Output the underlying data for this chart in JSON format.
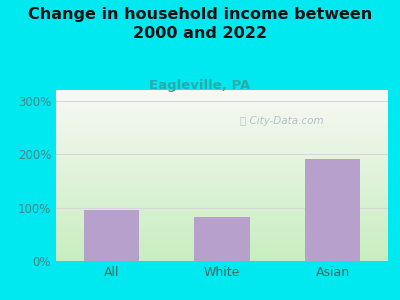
{
  "categories": [
    "All",
    "White",
    "Asian"
  ],
  "values": [
    95,
    82,
    191
  ],
  "bar_color": "#b8a0cc",
  "title": "Change in household income between\n2000 and 2022",
  "subtitle": "Eagleville, PA",
  "subtitle_color": "#2aaaaa",
  "title_fontsize": 11.5,
  "subtitle_fontsize": 9.5,
  "ylim": [
    0,
    320
  ],
  "yticks": [
    0,
    100,
    200,
    300
  ],
  "ytick_labels": [
    "0%",
    "100%",
    "200%",
    "300%"
  ],
  "background_color": "#00e8f0",
  "grad_bottom": "#c8eec0",
  "grad_top": "#f8f8f4",
  "grid_color": "#d8d8d8",
  "watermark": "City-Data.com",
  "watermark_color": "#a8b8c4",
  "tick_color": "#448888"
}
